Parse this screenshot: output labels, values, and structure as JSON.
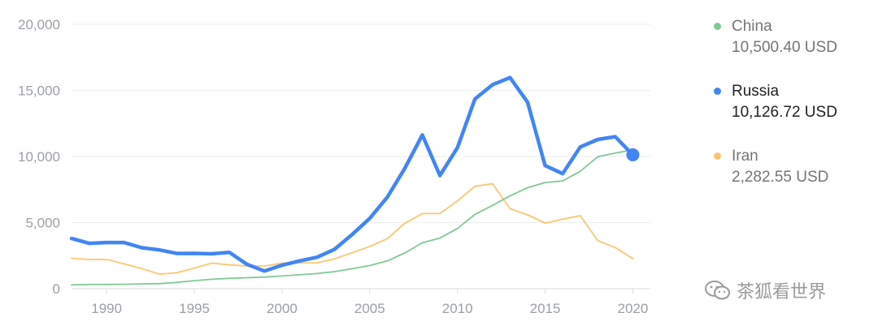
{
  "chart_data": {
    "type": "line",
    "x": [
      1988,
      1989,
      1990,
      1991,
      1992,
      1993,
      1994,
      1995,
      1996,
      1997,
      1998,
      1999,
      2000,
      2001,
      2002,
      2003,
      2004,
      2005,
      2006,
      2007,
      2008,
      2009,
      2010,
      2011,
      2012,
      2013,
      2014,
      2015,
      2016,
      2017,
      2018,
      2019,
      2020
    ],
    "xticks": [
      "1990",
      "1995",
      "2000",
      "2005",
      "2010",
      "2015",
      "2020"
    ],
    "yticks": [
      "0",
      "5,000",
      "10,000",
      "15,000",
      "20,000"
    ],
    "ylim": [
      0,
      20000
    ],
    "grid": true,
    "legend_position": "right",
    "series": [
      {
        "name": "China",
        "value_label": "10,500.40 USD",
        "color": "#81c995",
        "values": [
          280,
          310,
          320,
          330,
          360,
          380,
          470,
          610,
          710,
          780,
          830,
          870,
          960,
          1050,
          1150,
          1290,
          1510,
          1750,
          2100,
          2700,
          3470,
          3830,
          4550,
          5620,
          6300,
          7020,
          7640,
          8030,
          8150,
          8880,
          9980,
          10260,
          10500
        ]
      },
      {
        "name": "Russia",
        "value_label": "10,126.72 USD",
        "color": "#4285f4",
        "values": [
          3800,
          3430,
          3490,
          3490,
          3100,
          2930,
          2660,
          2670,
          2640,
          2740,
          1840,
          1330,
          1770,
          2100,
          2380,
          2980,
          4100,
          5320,
          6920,
          9100,
          11630,
          8560,
          10670,
          14350,
          15430,
          15970,
          14100,
          9310,
          8700,
          10720,
          11290,
          11500,
          10127
        ]
      },
      {
        "name": "Iran",
        "value_label": "2,282.55 USD",
        "color": "#fbc671",
        "values": [
          2300,
          2200,
          2210,
          1880,
          1520,
          1090,
          1200,
          1560,
          1930,
          1800,
          1720,
          1710,
          1930,
          1940,
          1960,
          2260,
          2720,
          3190,
          3780,
          4950,
          5680,
          5690,
          6640,
          7750,
          7930,
          6050,
          5580,
          4960,
          5250,
          5520,
          3640,
          3110,
          2283
        ]
      }
    ]
  },
  "watermark": {
    "text": "茶狐看世界",
    "icon": "wechat-icon"
  }
}
